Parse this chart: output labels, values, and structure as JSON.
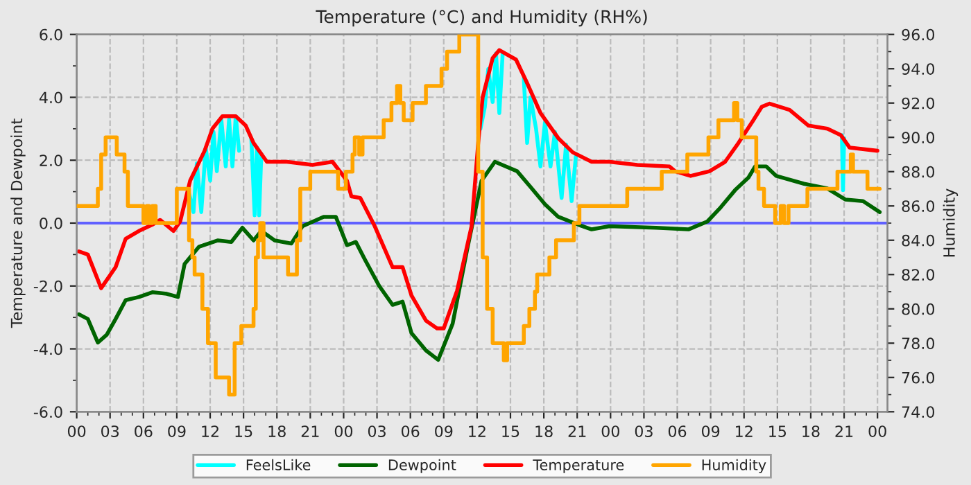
{
  "chart_data": {
    "type": "line",
    "title": "Temperature (°C) and Humidity (RH%)",
    "ylabel": "Temperature and Dewpoint",
    "y2label": "Humidity",
    "xlim": [
      0,
      72.9
    ],
    "xticks": [
      {
        "value": 0,
        "label": "00"
      },
      {
        "value": 3,
        "label": "03"
      },
      {
        "value": 6,
        "label": "06"
      },
      {
        "value": 9,
        "label": "09"
      },
      {
        "value": 12,
        "label": "12"
      },
      {
        "value": 15,
        "label": "15"
      },
      {
        "value": 18,
        "label": "18"
      },
      {
        "value": 21,
        "label": "21"
      },
      {
        "value": 24,
        "label": "00"
      },
      {
        "value": 27,
        "label": "03"
      },
      {
        "value": 30,
        "label": "06"
      },
      {
        "value": 33,
        "label": "09"
      },
      {
        "value": 36,
        "label": "12"
      },
      {
        "value": 39,
        "label": "15"
      },
      {
        "value": 42,
        "label": "18"
      },
      {
        "value": 45,
        "label": "21"
      },
      {
        "value": 48,
        "label": "00"
      },
      {
        "value": 51,
        "label": "03"
      },
      {
        "value": 54,
        "label": "06"
      },
      {
        "value": 57,
        "label": "09"
      },
      {
        "value": 60,
        "label": "12"
      },
      {
        "value": 63,
        "label": "15"
      },
      {
        "value": 66,
        "label": "18"
      },
      {
        "value": 69,
        "label": "21"
      },
      {
        "value": 72,
        "label": "00"
      }
    ],
    "ylim": [
      -6,
      6
    ],
    "yticks": [
      {
        "value": -6,
        "label": "-6.0"
      },
      {
        "value": -4,
        "label": "-4.0"
      },
      {
        "value": -2,
        "label": "-2.0"
      },
      {
        "value": 0,
        "label": "0.0"
      },
      {
        "value": 2,
        "label": "2.0"
      },
      {
        "value": 4,
        "label": "4.0"
      },
      {
        "value": 6,
        "label": "6.0"
      }
    ],
    "y2lim": [
      74,
      96
    ],
    "y2ticks": [
      {
        "value": 74,
        "label": "74.0"
      },
      {
        "value": 76,
        "label": "76.0"
      },
      {
        "value": 78,
        "label": "78.0"
      },
      {
        "value": 80,
        "label": "80.0"
      },
      {
        "value": 82,
        "label": "82.0"
      },
      {
        "value": 84,
        "label": "84.0"
      },
      {
        "value": 86,
        "label": "86.0"
      },
      {
        "value": 88,
        "label": "88.0"
      },
      {
        "value": 90,
        "label": "90.0"
      },
      {
        "value": 92,
        "label": "92.0"
      },
      {
        "value": 94,
        "label": "94.0"
      },
      {
        "value": 96,
        "label": "96.0"
      }
    ],
    "grid": true,
    "legend": "bottom",
    "line_style": "solid",
    "marker": "none",
    "ref_lines": [
      {
        "axis": "y",
        "value": 0,
        "color": "#6060ff"
      }
    ],
    "series": [
      {
        "name": "FeelsLike",
        "color": "#00ffff",
        "x": [
          10.0,
          10.5,
          10.8,
          11.2,
          11.6,
          12.0,
          12.3,
          12.6,
          13.0,
          13.4,
          13.7,
          14.0,
          14.3,
          14.6,
          15.0,
          15.7,
          16.0,
          16.2,
          16.4,
          16.6,
          17.0,
          36.3,
          36.7,
          37.0,
          37.4,
          37.7,
          38.0,
          38.3,
          39.0,
          40.2,
          40.5,
          40.8,
          41.3,
          41.7,
          42.1,
          42.6,
          43.0,
          43.6,
          44.0,
          44.5,
          44.9,
          45.5,
          68.8,
          68.9,
          69.0
        ],
        "values": [
          1.1,
          0.35,
          1.9,
          0.35,
          2.4,
          1.35,
          2.9,
          1.65,
          3.3,
          1.8,
          3.3,
          1.8,
          3.4,
          2.3,
          null,
          2.7,
          0.25,
          2.4,
          0.25,
          2.2,
          null,
          3.0,
          3.7,
          4.9,
          3.85,
          5.4,
          3.5,
          5.4,
          null,
          4.6,
          2.55,
          4.0,
          3.0,
          1.8,
          3.2,
          1.8,
          2.9,
          0.8,
          2.5,
          0.7,
          2.2,
          null,
          2.8,
          1.05,
          2.7
        ]
      },
      {
        "name": "Dewpoint",
        "color": "#006400",
        "x": [
          0.2,
          1.0,
          1.9,
          2.7,
          3.5,
          4.4,
          5.6,
          6.8,
          8.1,
          9.1,
          9.7,
          11.0,
          12.7,
          13.9,
          14.9,
          15.9,
          16.6,
          17.8,
          19.3,
          20.3,
          22.2,
          23.3,
          24.3,
          25.1,
          25.9,
          27.2,
          28.4,
          29.3,
          30.1,
          31.4,
          32.5,
          33.8,
          35.1,
          36.4,
          37.6,
          39.6,
          40.8,
          42.1,
          43.3,
          45.1,
          46.3,
          47.9,
          52.1,
          55.0,
          56.7,
          57.9,
          59.2,
          60.4,
          61.0,
          62.0,
          62.9,
          65.4,
          67.5,
          69.1,
          70.7,
          72.2
        ],
        "values": [
          -2.9,
          -3.05,
          -3.8,
          -3.55,
          -3.05,
          -2.45,
          -2.35,
          -2.2,
          -2.25,
          -2.35,
          -1.3,
          -0.75,
          -0.55,
          -0.6,
          -0.15,
          -0.55,
          -0.25,
          -0.55,
          -0.65,
          -0.1,
          0.2,
          0.2,
          -0.7,
          -0.6,
          -1.15,
          -2.0,
          -2.6,
          -2.5,
          -3.5,
          -4.05,
          -4.35,
          -3.2,
          -0.85,
          1.35,
          1.95,
          1.65,
          1.15,
          0.6,
          0.2,
          -0.05,
          -0.2,
          -0.1,
          -0.15,
          -0.2,
          0.05,
          0.5,
          1.05,
          1.45,
          1.8,
          1.8,
          1.5,
          1.25,
          1.1,
          0.75,
          0.7,
          0.35
        ]
      },
      {
        "name": "Temperature",
        "color": "#ff0000",
        "x": [
          0.2,
          1.0,
          2.2,
          3.5,
          4.4,
          5.6,
          6.8,
          7.5,
          8.7,
          9.3,
          10.2,
          11.5,
          12.2,
          13.1,
          14.3,
          15.2,
          15.9,
          17.1,
          18.9,
          21.2,
          23.0,
          24.3,
          24.7,
          25.5,
          26.8,
          28.4,
          29.3,
          30.1,
          31.4,
          32.4,
          33.0,
          34.2,
          35.5,
          36.1,
          36.5,
          37.4,
          38.0,
          39.5,
          40.5,
          41.7,
          43.3,
          44.6,
          46.3,
          47.9,
          50.4,
          53.3,
          53.8,
          55.2,
          56.9,
          58.3,
          59.5,
          60.8,
          61.6,
          62.3,
          64.1,
          65.8,
          67.5,
          68.7,
          69.5,
          72.0
        ],
        "values": [
          -0.9,
          -1.0,
          -2.07,
          -1.4,
          -0.5,
          -0.25,
          -0.05,
          0.1,
          -0.25,
          0.05,
          1.35,
          2.3,
          3.0,
          3.4,
          3.4,
          3.1,
          2.55,
          1.95,
          1.95,
          1.85,
          1.95,
          1.35,
          0.85,
          0.8,
          -0.1,
          -1.4,
          -1.4,
          -2.3,
          -3.1,
          -3.35,
          -3.35,
          -2.15,
          -0.1,
          2.55,
          4.0,
          5.25,
          5.5,
          5.2,
          4.45,
          3.5,
          2.7,
          2.25,
          1.95,
          1.95,
          1.85,
          1.8,
          1.65,
          1.5,
          1.65,
          1.95,
          2.55,
          3.25,
          3.7,
          3.8,
          3.6,
          3.1,
          3.0,
          2.8,
          2.4,
          2.3
        ]
      },
      {
        "name": "Humidity",
        "color": "#ffa500",
        "type": "step",
        "axis": "y2",
        "x": [
          0,
          1.9,
          2.2,
          2.6,
          3.6,
          4.3,
          4.6,
          6.0,
          6.3,
          6.5,
          6.8,
          7.1,
          9.0,
          10.1,
          10.4,
          10.6,
          11.3,
          11.8,
          12.5,
          13.7,
          14.2,
          14.8,
          15.9,
          16.1,
          16.3,
          16.5,
          16.8,
          19.0,
          19.8,
          20.1,
          21.0,
          23.5,
          24.2,
          24.8,
          25.0,
          25.4,
          25.7,
          27.6,
          28.3,
          28.8,
          29.1,
          29.4,
          30.2,
          31.4,
          32.8,
          33.3,
          34.4,
          36.1,
          36.5,
          36.9,
          37.4,
          38.4,
          38.7,
          40.2,
          40.7,
          41.2,
          41.4,
          42.5,
          43.1,
          44.7,
          45.2,
          49.5,
          52.6,
          54.9,
          56.8,
          57.7,
          59.1,
          59.4,
          59.8,
          61.1,
          61.3,
          61.8,
          62.8,
          63.3,
          63.6,
          64.0,
          65.7,
          68.4,
          69.6,
          69.8,
          71.1,
          72.2
        ],
        "values": [
          86,
          87,
          89,
          90,
          89,
          88,
          86,
          85,
          86,
          85,
          86,
          85,
          87,
          84,
          83,
          82,
          80,
          78,
          76,
          75,
          78,
          79,
          80,
          83,
          84,
          85,
          83,
          82,
          84,
          87,
          88,
          87,
          88,
          89,
          90,
          89,
          90,
          91,
          92,
          93,
          92,
          91,
          92,
          93,
          94,
          95,
          96,
          88,
          83,
          80,
          78,
          77,
          78,
          79,
          80,
          81,
          82,
          83,
          84,
          85,
          86,
          87,
          88,
          89,
          90,
          91,
          92,
          91,
          90,
          88,
          87,
          86,
          85,
          86,
          85,
          86,
          87,
          88,
          89,
          88,
          87,
          87
        ]
      }
    ]
  }
}
